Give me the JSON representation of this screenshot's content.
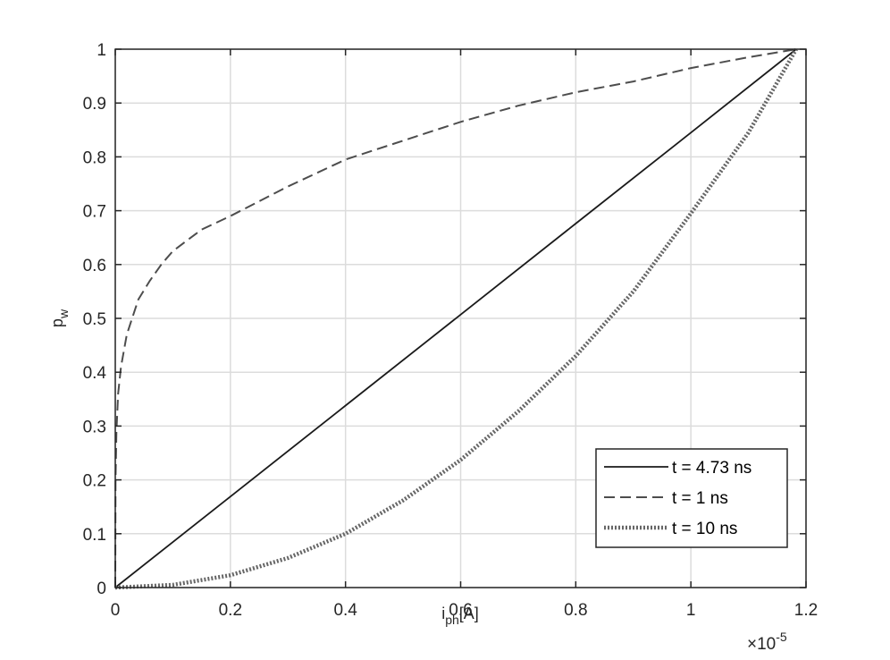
{
  "chart_data": {
    "type": "line",
    "title": "",
    "xlabel": {
      "main": "i",
      "sub": "ph",
      "unit": "[A]"
    },
    "ylabel": {
      "main": "p",
      "sub": "w"
    },
    "x_exponent": {
      "base": "×10",
      "power": "-5",
      "value": 1e-05
    },
    "xlim": [
      0,
      1.2
    ],
    "ylim": [
      0,
      1
    ],
    "x_ticks": [
      0,
      0.2,
      0.4,
      0.6,
      0.8,
      1,
      1.2
    ],
    "y_ticks": [
      0,
      0.1,
      0.2,
      0.3,
      0.4,
      0.5,
      0.6,
      0.7,
      0.8,
      0.9,
      1
    ],
    "grid": true,
    "legend_position": "bottom-right",
    "x_max_data": 1.183,
    "series": [
      {
        "name": "t = 4.73 ns",
        "style": "solid",
        "color": "#1a1a1a",
        "x": [
          0,
          0.2,
          0.4,
          0.6,
          0.8,
          1.0,
          1.183
        ],
        "y": [
          0,
          0.169,
          0.338,
          0.507,
          0.676,
          0.845,
          1.0
        ]
      },
      {
        "name": "t = 1 ns",
        "style": "dashed",
        "color": "#4d4d4d",
        "x": [
          0,
          0.0005,
          0.002,
          0.005,
          0.01,
          0.02,
          0.04,
          0.06,
          0.08,
          0.1,
          0.15,
          0.2,
          0.3,
          0.4,
          0.5,
          0.6,
          0.7,
          0.8,
          0.9,
          1.0,
          1.1,
          1.183
        ],
        "y": [
          0,
          0.2,
          0.29,
          0.36,
          0.41,
          0.47,
          0.535,
          0.57,
          0.6,
          0.625,
          0.665,
          0.69,
          0.745,
          0.795,
          0.83,
          0.865,
          0.895,
          0.92,
          0.94,
          0.965,
          0.985,
          1.0
        ]
      },
      {
        "name": "t = 10 ns",
        "style": "dotted",
        "color": "#666666",
        "x": [
          0,
          0.1,
          0.2,
          0.3,
          0.4,
          0.5,
          0.6,
          0.7,
          0.8,
          0.9,
          1.0,
          1.1,
          1.183
        ],
        "y": [
          0,
          0.005,
          0.023,
          0.055,
          0.1,
          0.162,
          0.237,
          0.327,
          0.43,
          0.55,
          0.695,
          0.845,
          1.0
        ]
      }
    ]
  }
}
